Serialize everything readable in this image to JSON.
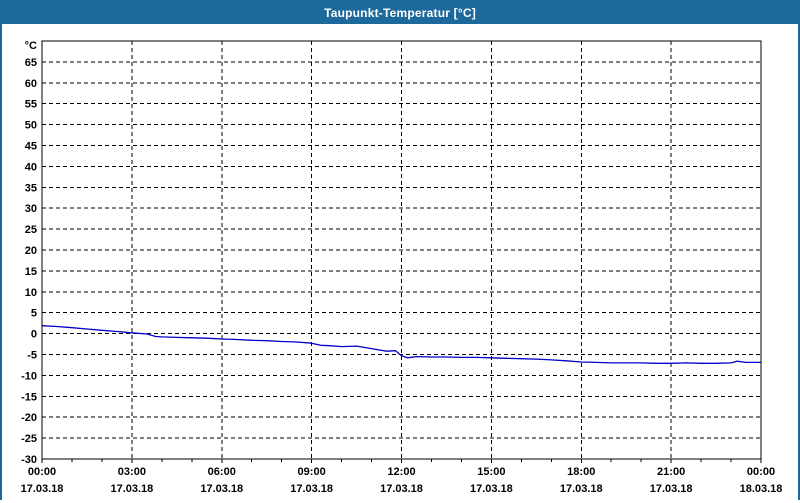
{
  "window": {
    "title": "Taupunkt-Temperatur [°C]"
  },
  "colors": {
    "titlebar_bg": "#1e699b",
    "titlebar_text": "#ffffff",
    "window_border": "#1e699b",
    "plot_background": "#ffffff",
    "grid": "#000000",
    "axis_text": "#000000",
    "series_line": "#0000c8"
  },
  "chart_data": {
    "type": "line",
    "title": "Taupunkt-Temperatur [°C]",
    "y_unit": "°C",
    "ylabel": "",
    "xlabel": "",
    "ylim": [
      -30,
      70
    ],
    "yticks": [
      -30,
      -25,
      -20,
      -15,
      -10,
      -5,
      0,
      5,
      10,
      15,
      20,
      25,
      30,
      35,
      40,
      45,
      50,
      55,
      60,
      65
    ],
    "xlim_hours": [
      0,
      24
    ],
    "xticks": [
      {
        "hour": 0,
        "time": "00:00",
        "date": "17.03.18"
      },
      {
        "hour": 3,
        "time": "03:00",
        "date": "17.03.18"
      },
      {
        "hour": 6,
        "time": "06:00",
        "date": "17.03.18"
      },
      {
        "hour": 9,
        "time": "09:00",
        "date": "17.03.18"
      },
      {
        "hour": 12,
        "time": "12:00",
        "date": "17.03.18"
      },
      {
        "hour": 15,
        "time": "15:00",
        "date": "17.03.18"
      },
      {
        "hour": 18,
        "time": "18:00",
        "date": "17.03.18"
      },
      {
        "hour": 21,
        "time": "21:00",
        "date": "17.03.18"
      },
      {
        "hour": 24,
        "time": "00:00",
        "date": "18.03.18"
      }
    ],
    "minor_tick_every_hours": 1,
    "grid_style": "dashed",
    "legend": "none",
    "series": [
      {
        "name": "Taupunkt-Temperatur",
        "color": "#0000c8",
        "x_hours": [
          0,
          0.5,
          1,
          1.5,
          2,
          2.5,
          3,
          3.5,
          3.8,
          4,
          4.5,
          5,
          5.5,
          6,
          6.5,
          7,
          7.5,
          8,
          8.5,
          9,
          9.3,
          9.6,
          10,
          10.5,
          11,
          11.5,
          11.8,
          12,
          12.2,
          12.5,
          13,
          13.5,
          14,
          14.5,
          15,
          15.5,
          16,
          16.5,
          17,
          17.5,
          18,
          18.5,
          19,
          19.5,
          20,
          20.5,
          21,
          21.5,
          22,
          22.5,
          23,
          23.2,
          23.5,
          24
        ],
        "y_celsius": [
          1.9,
          1.7,
          1.4,
          1.1,
          0.8,
          0.5,
          0.2,
          -0.1,
          -0.7,
          -0.8,
          -0.9,
          -1.0,
          -1.1,
          -1.3,
          -1.4,
          -1.6,
          -1.7,
          -1.9,
          -2.0,
          -2.3,
          -2.8,
          -2.9,
          -3.1,
          -3.0,
          -3.6,
          -4.2,
          -4.1,
          -5.3,
          -5.8,
          -5.5,
          -5.6,
          -5.6,
          -5.7,
          -5.7,
          -5.8,
          -5.9,
          -6.0,
          -6.1,
          -6.3,
          -6.5,
          -6.8,
          -6.9,
          -7.0,
          -7.0,
          -7.0,
          -7.1,
          -7.1,
          -7.0,
          -7.1,
          -7.1,
          -7.0,
          -6.6,
          -6.9,
          -6.9
        ]
      }
    ]
  }
}
